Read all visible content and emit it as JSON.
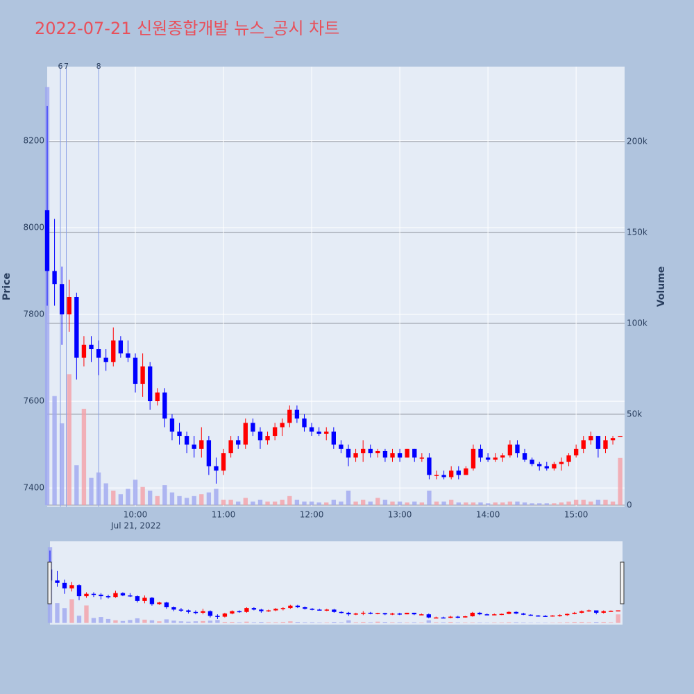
{
  "chart_data": {
    "type": "candlestick",
    "title": "2022-07-21 신원종합개발 뉴스_공시 차트",
    "y_title": "Price",
    "y2_title": "Volume",
    "x": [
      "2022-07-21 09:00",
      "2022-07-21 09:05",
      "2022-07-21 09:10",
      "2022-07-21 09:15",
      "2022-07-21 09:20",
      "2022-07-21 09:25",
      "2022-07-21 09:30",
      "2022-07-21 09:35",
      "2022-07-21 09:40",
      "2022-07-21 09:45",
      "2022-07-21 09:50",
      "2022-07-21 09:55",
      "2022-07-21 10:00",
      "2022-07-21 10:05",
      "2022-07-21 10:10",
      "2022-07-21 10:15",
      "2022-07-21 10:20",
      "2022-07-21 10:25",
      "2022-07-21 10:30",
      "2022-07-21 10:35",
      "2022-07-21 10:40",
      "2022-07-21 10:45",
      "2022-07-21 10:50",
      "2022-07-21 10:55",
      "2022-07-21 11:00",
      "2022-07-21 11:05",
      "2022-07-21 11:10",
      "2022-07-21 11:15",
      "2022-07-21 11:20",
      "2022-07-21 11:25",
      "2022-07-21 11:30",
      "2022-07-21 11:35",
      "2022-07-21 11:40",
      "2022-07-21 11:45",
      "2022-07-21 11:50",
      "2022-07-21 11:55",
      "2022-07-21 12:00",
      "2022-07-21 12:05",
      "2022-07-21 12:10",
      "2022-07-21 12:15",
      "2022-07-21 12:20",
      "2022-07-21 12:25",
      "2022-07-21 12:30",
      "2022-07-21 12:35",
      "2022-07-21 12:40",
      "2022-07-21 12:45",
      "2022-07-21 12:50",
      "2022-07-21 12:55",
      "2022-07-21 13:00",
      "2022-07-21 13:05",
      "2022-07-21 13:10",
      "2022-07-21 13:15",
      "2022-07-21 13:20",
      "2022-07-21 13:25",
      "2022-07-21 13:30",
      "2022-07-21 13:35",
      "2022-07-21 13:40",
      "2022-07-21 13:45",
      "2022-07-21 13:50",
      "2022-07-21 13:55",
      "2022-07-21 14:00",
      "2022-07-21 14:05",
      "2022-07-21 14:10",
      "2022-07-21 14:15",
      "2022-07-21 14:20",
      "2022-07-21 14:25",
      "2022-07-21 14:30",
      "2022-07-21 14:35",
      "2022-07-21 14:40",
      "2022-07-21 14:45",
      "2022-07-21 14:50",
      "2022-07-21 14:55",
      "2022-07-21 15:00",
      "2022-07-21 15:05",
      "2022-07-21 15:10",
      "2022-07-21 15:15",
      "2022-07-21 15:20",
      "2022-07-21 15:25",
      "2022-07-21 15:30"
    ],
    "open": [
      8040,
      7900,
      7870,
      7800,
      7840,
      7700,
      7730,
      7720,
      7700,
      7690,
      7740,
      7710,
      7700,
      7640,
      7680,
      7600,
      7620,
      7560,
      7530,
      7520,
      7500,
      7490,
      7510,
      7450,
      7440,
      7480,
      7510,
      7500,
      7550,
      7530,
      7510,
      7520,
      7540,
      7550,
      7580,
      7560,
      7540,
      7530,
      7525,
      7530,
      7500,
      7490,
      7470,
      7480,
      7490,
      7480,
      7485,
      7470,
      7480,
      7470,
      7490,
      7470,
      7470,
      7430,
      7430,
      7425,
      7440,
      7430,
      7445,
      7490,
      7470,
      7465,
      7470,
      7475,
      7500,
      7480,
      7465,
      7455,
      7450,
      7445,
      7455,
      7460,
      7475,
      7490,
      7510,
      7520,
      7490,
      7510,
      7520
    ],
    "high": [
      8280,
      8020,
      7910,
      7880,
      7850,
      7750,
      7750,
      7740,
      7720,
      7770,
      7750,
      7740,
      7710,
      7710,
      7690,
      7630,
      7630,
      7570,
      7550,
      7530,
      7520,
      7540,
      7520,
      7470,
      7490,
      7520,
      7520,
      7560,
      7560,
      7540,
      7530,
      7550,
      7560,
      7590,
      7590,
      7570,
      7550,
      7540,
      7540,
      7540,
      7510,
      7500,
      7490,
      7510,
      7500,
      7490,
      7490,
      7490,
      7490,
      7490,
      7490,
      7480,
      7480,
      7440,
      7440,
      7450,
      7450,
      7450,
      7500,
      7500,
      7480,
      7480,
      7480,
      7510,
      7510,
      7490,
      7470,
      7460,
      7460,
      7460,
      7470,
      7480,
      7500,
      7520,
      7530,
      7520,
      7520,
      7520,
      7520
    ],
    "low": [
      7820,
      7820,
      7730,
      7760,
      7650,
      7680,
      7690,
      7660,
      7670,
      7680,
      7700,
      7690,
      7620,
      7610,
      7580,
      7590,
      7540,
      7510,
      7500,
      7480,
      7470,
      7470,
      7430,
      7410,
      7430,
      7470,
      7490,
      7490,
      7520,
      7490,
      7500,
      7510,
      7520,
      7540,
      7550,
      7530,
      7520,
      7520,
      7510,
      7490,
      7480,
      7450,
      7460,
      7460,
      7470,
      7470,
      7460,
      7460,
      7460,
      7470,
      7460,
      7460,
      7420,
      7420,
      7420,
      7420,
      7420,
      7430,
      7440,
      7460,
      7460,
      7460,
      7460,
      7470,
      7470,
      7460,
      7450,
      7440,
      7440,
      7440,
      7440,
      7450,
      7470,
      7480,
      7500,
      7470,
      7480,
      7500,
      7520
    ],
    "close": [
      7900,
      7870,
      7800,
      7840,
      7700,
      7730,
      7720,
      7700,
      7690,
      7740,
      7710,
      7700,
      7640,
      7680,
      7600,
      7620,
      7560,
      7530,
      7520,
      7500,
      7490,
      7510,
      7450,
      7440,
      7480,
      7510,
      7500,
      7550,
      7530,
      7510,
      7520,
      7540,
      7550,
      7580,
      7560,
      7540,
      7530,
      7525,
      7530,
      7500,
      7490,
      7470,
      7480,
      7490,
      7480,
      7485,
      7470,
      7480,
      7470,
      7490,
      7470,
      7470,
      7430,
      7430,
      7425,
      7440,
      7430,
      7445,
      7490,
      7470,
      7465,
      7470,
      7475,
      7500,
      7480,
      7465,
      7455,
      7450,
      7445,
      7455,
      7460,
      7475,
      7490,
      7510,
      7520,
      7490,
      7510,
      7515,
      7520
    ],
    "volume": [
      230000,
      60000,
      45000,
      72000,
      22000,
      53000,
      15000,
      18000,
      12000,
      8000,
      6000,
      9000,
      14000,
      10000,
      8000,
      5000,
      11000,
      7000,
      5000,
      4000,
      5000,
      6000,
      7000,
      9000,
      3000,
      3000,
      2000,
      4000,
      2000,
      3000,
      2000,
      2000,
      3000,
      5000,
      3000,
      2000,
      2000,
      1500,
      1500,
      3000,
      2000,
      8000,
      2000,
      3000,
      2000,
      4000,
      3000,
      2000,
      2000,
      1500,
      2000,
      1500,
      8000,
      2000,
      2000,
      3000,
      1500,
      1500,
      1500,
      1500,
      1000,
      1500,
      1500,
      2000,
      2000,
      1500,
      1000,
      1000,
      1000,
      1000,
      1500,
      2000,
      3000,
      3000,
      2000,
      3000,
      3000,
      2000,
      26000
    ],
    "increasing_color": "#ff0000",
    "decreasing_color": "#0000ff",
    "volume_increasing_color": "#f4a0a8",
    "volume_decreasing_color": "#9fa8f0",
    "xlim": [
      "2022-07-21 09:00",
      "2022-07-21 15:33"
    ],
    "xticks": [
      {
        "value": "2022-07-21 10:00",
        "label": "10:00"
      },
      {
        "value": "2022-07-21 11:00",
        "label": "11:00"
      },
      {
        "value": "2022-07-21 12:00",
        "label": "12:00"
      },
      {
        "value": "2022-07-21 13:00",
        "label": "13:00"
      },
      {
        "value": "2022-07-21 14:00",
        "label": "14:00"
      },
      {
        "value": "2022-07-21 15:00",
        "label": "15:00"
      }
    ],
    "x_date_label": "Jul 21, 2022",
    "ylim": [
      7357,
      8371
    ],
    "yticks": [
      7400,
      7600,
      7800,
      8000,
      8200
    ],
    "y2lim": [
      -800,
      241200
    ],
    "y2ticks": [
      0,
      {
        "value": 50000,
        "label": "50k"
      },
      {
        "value": 100000,
        "label": "100k"
      },
      {
        "value": 150000,
        "label": "150k"
      },
      {
        "value": 200000,
        "label": "200k"
      }
    ],
    "news_markers": [
      {
        "x": "2022-07-21 09:09",
        "label": "6"
      },
      {
        "x": "2022-07-21 09:13",
        "label": "7"
      },
      {
        "x": "2022-07-21 09:35",
        "label": "8"
      }
    ],
    "grid": true,
    "range_slider": true
  }
}
